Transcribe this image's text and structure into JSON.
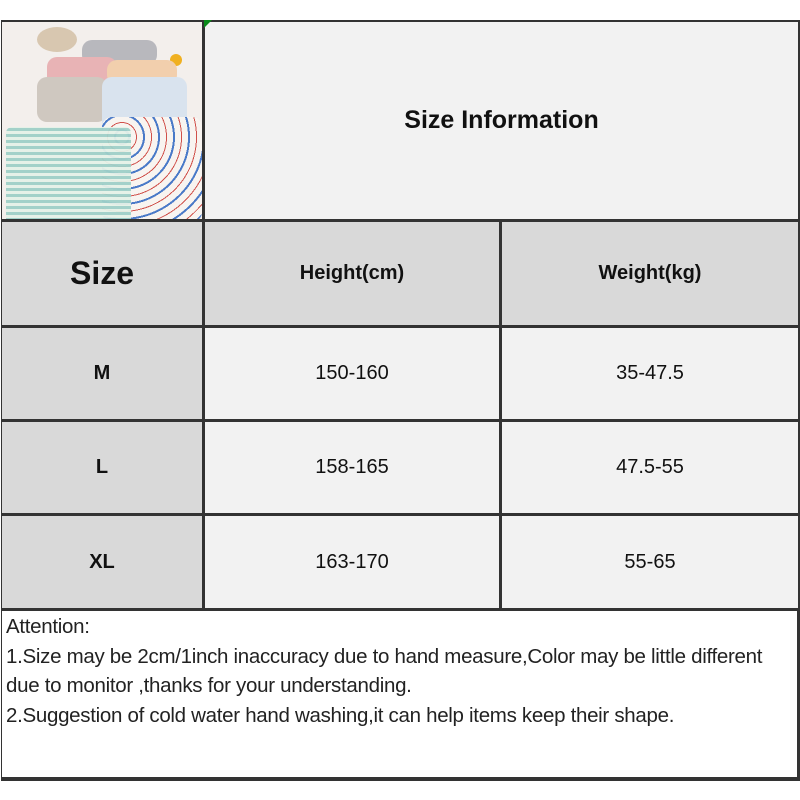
{
  "title": "Size Information",
  "table": {
    "headers": [
      "Size",
      "Height(cm)",
      "Weight(kg)"
    ],
    "rows": [
      {
        "size": "M",
        "height": "150-160",
        "weight": "35-47.5"
      },
      {
        "size": "L",
        "height": "158-165",
        "weight": "47.5-55"
      },
      {
        "size": "XL",
        "height": "163-170",
        "weight": "55-65"
      }
    ]
  },
  "notes": {
    "heading": "Attention:",
    "line1": "1.Size may be 2cm/1inch inaccuracy due to hand measure,Color may be little different due to monitor ,thanks for your understanding.",
    "line2": "2.Suggestion of cold water hand washing,it can help items keep their shape."
  },
  "colors": {
    "header_bg": "#d9d9d9",
    "cell_bg": "#f2f2f2",
    "border": "#333333"
  }
}
